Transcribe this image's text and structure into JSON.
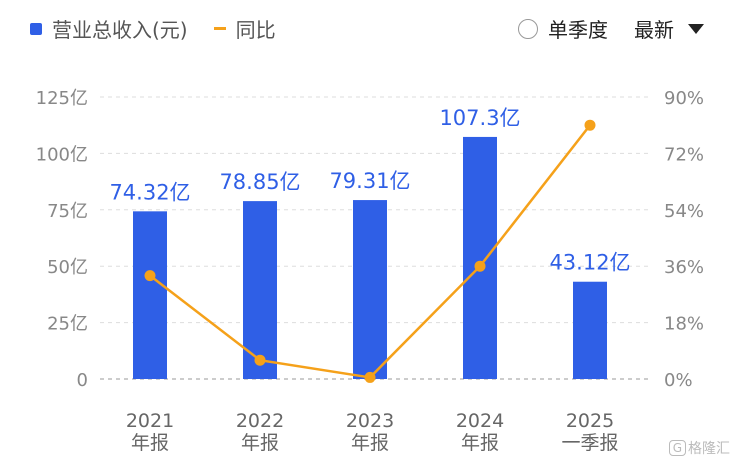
{
  "legend": {
    "bar_label": "营业总收入(元)",
    "line_label": "同比"
  },
  "controls": {
    "single_quarter": "单季度",
    "sort": "最新"
  },
  "watermark": "格隆汇",
  "colors": {
    "bar": "#2f5fe6",
    "line": "#f5a11a",
    "label": "#2f5fe6",
    "axis_text": "#888888",
    "grid": "#dddddd"
  },
  "chart_data": {
    "type": "bar",
    "categories": [
      "2021\n年报",
      "2022\n年报",
      "2023\n年报",
      "2024\n年报",
      "2025\n一季报"
    ],
    "series": [
      {
        "name": "营业总收入(元)",
        "type": "bar",
        "axis": "left",
        "values": [
          74.32,
          78.85,
          79.31,
          107.3,
          43.12
        ],
        "labels": [
          "74.32亿",
          "78.85亿",
          "79.31亿",
          "107.3亿",
          "43.12亿"
        ]
      },
      {
        "name": "同比",
        "type": "line",
        "axis": "right",
        "values": [
          33,
          6,
          0.5,
          36,
          81
        ]
      }
    ],
    "y_left": {
      "ticks": [
        "0",
        "25亿",
        "50亿",
        "75亿",
        "100亿",
        "125亿"
      ],
      "ylim": [
        0,
        125
      ]
    },
    "y_right": {
      "ticks": [
        "0%",
        "18%",
        "36%",
        "54%",
        "72%",
        "90%"
      ],
      "ylim": [
        0,
        90
      ]
    },
    "grid": true,
    "legend_position": "top-left"
  }
}
